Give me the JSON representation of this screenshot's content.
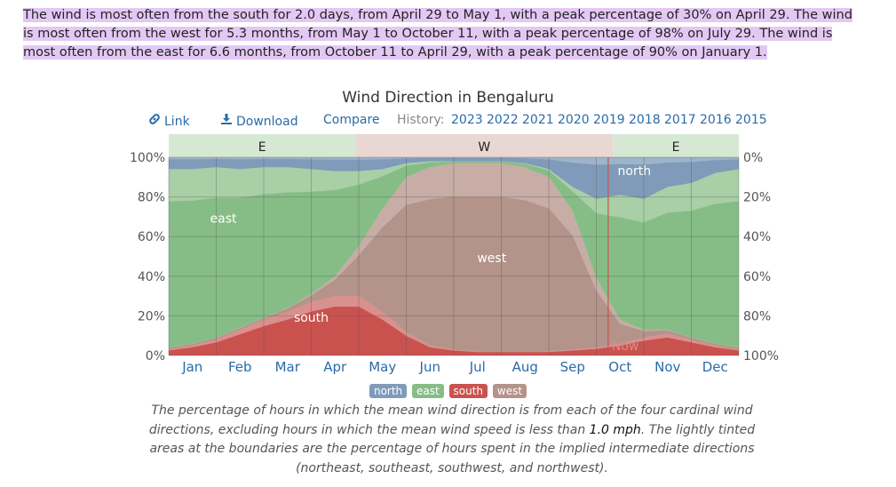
{
  "summary": {
    "text": "The wind is most often from the south for 2.0 days, from April 29 to May 1, with a peak percentage of 30% on April 29. The wind is most often from the west for 5.3 months, from May 1 to October 11, with a peak percentage of 98% on July 29. The wind is most often from the east for 6.6 months, from October 11 to April 29, with a peak percentage of 90% on January 1.",
    "highlight_color": "#e4c8f4"
  },
  "toolbar": {
    "link_label": "Link",
    "download_label": "Download",
    "compare_label": "Compare",
    "history_label": "History:",
    "years": [
      "2023",
      "2022",
      "2021",
      "2020",
      "2019",
      "2018",
      "2017",
      "2016",
      "2015"
    ],
    "link_icon": "link-icon",
    "download_icon": "download-icon"
  },
  "chart_data": {
    "type": "area",
    "title": "Wind Direction in Bengaluru",
    "stacked": true,
    "xlabel": "",
    "ylabel": "",
    "ylim": [
      0,
      100
    ],
    "x_ticks": [
      "Jan",
      "Feb",
      "Mar",
      "Apr",
      "May",
      "Jun",
      "Jul",
      "Aug",
      "Sep",
      "Oct",
      "Nov",
      "Dec"
    ],
    "y_ticks_left": [
      "0%",
      "20%",
      "40%",
      "60%",
      "80%",
      "100%"
    ],
    "y_ticks_right": [
      "100%",
      "80%",
      "60%",
      "40%",
      "20%",
      "0%"
    ],
    "x_month_fraction": [
      0,
      0.5,
      1,
      1.5,
      2,
      2.5,
      3,
      3.5,
      4,
      4.5,
      5,
      5.5,
      6,
      6.5,
      7,
      7.5,
      8,
      8.5,
      9,
      9.5,
      10,
      10.5,
      11,
      11.5,
      12
    ],
    "series": [
      {
        "name": "south",
        "color": "#c9524f",
        "tint": "#dea6a4",
        "values": [
          3,
          5,
          8,
          13,
          18,
          22,
          27,
          30,
          30,
          22,
          12,
          5,
          3,
          2,
          2,
          2,
          2,
          3,
          4,
          6,
          9,
          11,
          8,
          5,
          3
        ]
      },
      {
        "name": "west",
        "color": "#b3938a",
        "tint": "#cdb5ae",
        "values": [
          1,
          1,
          1,
          1,
          1,
          2,
          4,
          10,
          25,
          52,
          78,
          90,
          94,
          95,
          95,
          93,
          88,
          70,
          35,
          12,
          4,
          2,
          1,
          1,
          1
        ]
      },
      {
        "name": "east",
        "color": "#86bd86",
        "tint": "#b3d6b0",
        "values": [
          90,
          88,
          86,
          80,
          76,
          71,
          63,
          53,
          38,
          20,
          7,
          3,
          1,
          1,
          1,
          2,
          4,
          12,
          40,
          63,
          66,
          72,
          78,
          86,
          90
        ]
      },
      {
        "name": "north",
        "color": "#7f9bb9",
        "tint": "#a7bcd2",
        "values": [
          6,
          6,
          5,
          6,
          5,
          5,
          6,
          7,
          7,
          6,
          3,
          2,
          2,
          2,
          2,
          3,
          6,
          15,
          21,
          19,
          21,
          15,
          13,
          8,
          6
        ]
      }
    ],
    "dominant_bands": [
      {
        "label": "E",
        "start_month": 0,
        "end_month": 3.93,
        "color": "#d6e8d4"
      },
      {
        "label": "W",
        "start_month": 3.93,
        "end_month": 9.35,
        "color": "#e8d7d3"
      },
      {
        "label": "E",
        "start_month": 9.35,
        "end_month": 12,
        "color": "#d6e8d4"
      }
    ],
    "area_labels": [
      {
        "text": "east",
        "month": 1.15,
        "value": 67
      },
      {
        "text": "south",
        "month": 3.0,
        "value": 17
      },
      {
        "text": "west",
        "month": 6.8,
        "value": 47
      },
      {
        "text": "north",
        "month": 9.8,
        "value": 91
      }
    ],
    "now": {
      "label": "Now",
      "month": 9.25
    },
    "grid": true,
    "legend_position": "bottom"
  },
  "legend": [
    {
      "name": "north",
      "color": "#7f9bb9"
    },
    {
      "name": "east",
      "color": "#86bd86"
    },
    {
      "name": "south",
      "color": "#c9524f"
    },
    {
      "name": "west",
      "color": "#b3938a"
    }
  ],
  "caption": {
    "part1": "The percentage of hours in which the mean wind direction is from each of the four cardinal wind directions, excluding hours in which the mean wind speed is less than ",
    "speed": "1.0 mph",
    "part2": ". The lightly tinted areas at the boundaries are the percentage of hours spent in the implied intermediate directions (northeast, southeast, southwest, and northwest)."
  }
}
